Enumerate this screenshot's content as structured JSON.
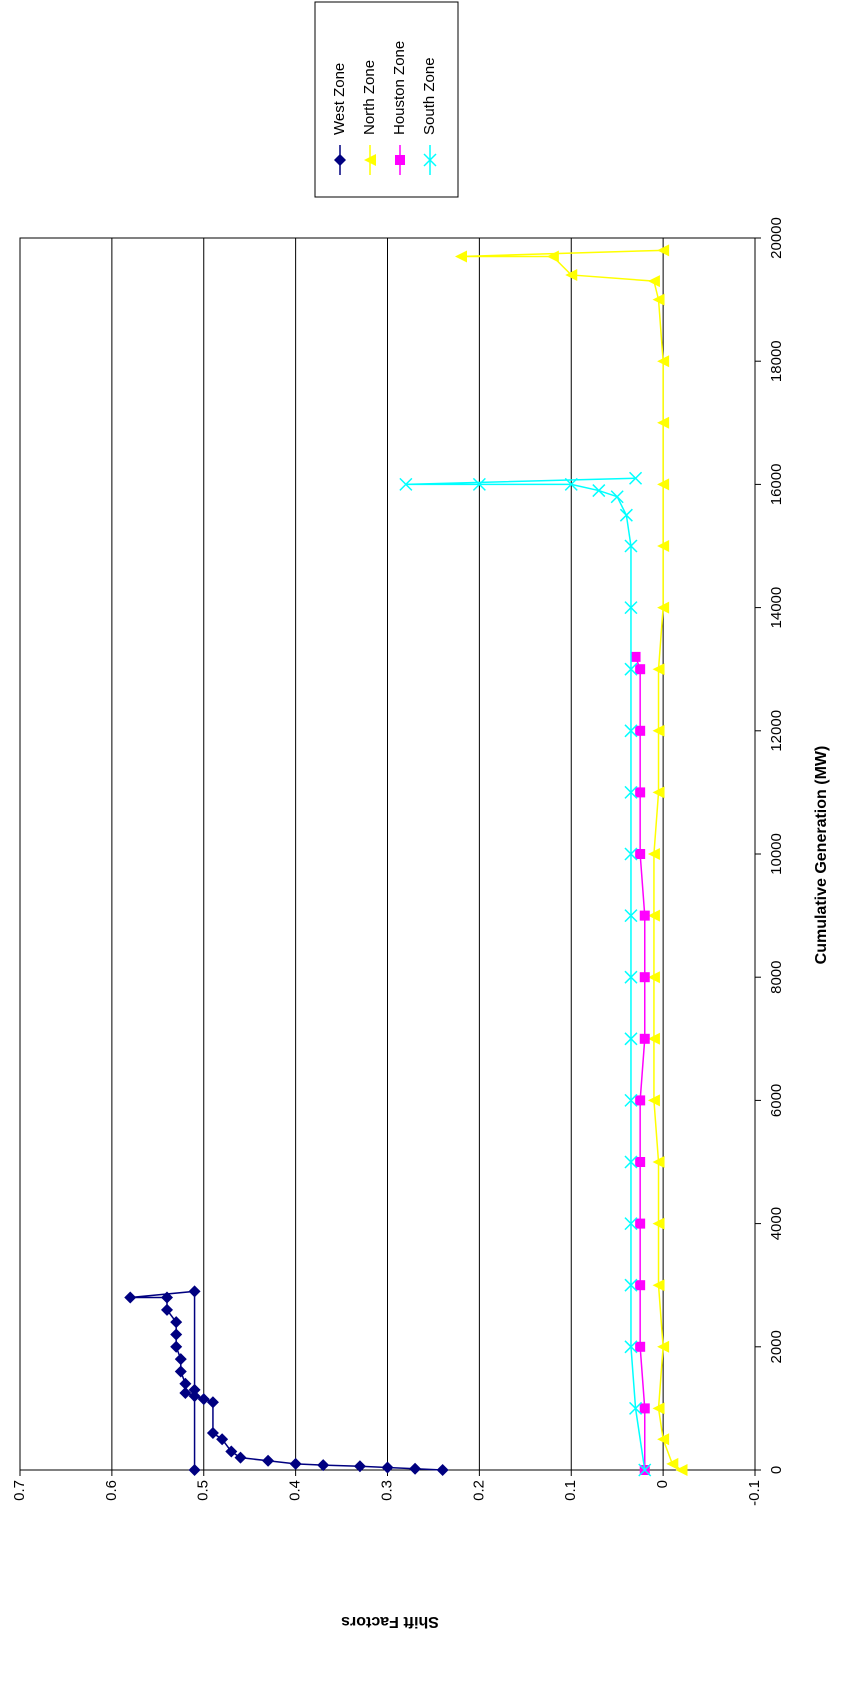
{
  "chart_data": {
    "type": "line",
    "x_label": "Cumulative Generation (MW)",
    "y_label": "Shift Factors",
    "xlim": [
      0,
      20000
    ],
    "xticks": [
      0,
      2000,
      4000,
      6000,
      8000,
      10000,
      12000,
      14000,
      16000,
      18000,
      20000
    ],
    "ylim": [
      -0.1,
      0.7
    ],
    "yticks": [
      -0.1,
      0,
      0.1,
      0.2,
      0.3,
      0.4,
      0.5,
      0.6,
      0.7
    ],
    "grid": true,
    "legend": "right",
    "series": [
      {
        "name": "West Zone",
        "color": "#000080",
        "marker": "diamond",
        "x": [
          0,
          20,
          40,
          60,
          80,
          100,
          150,
          200,
          300,
          500,
          600,
          1100,
          1150,
          1200,
          1250,
          1400,
          1600,
          1800,
          2000,
          2200,
          2400,
          2600,
          2800,
          2800,
          2900,
          1300,
          0
        ],
        "values": [
          0.24,
          0.27,
          0.3,
          0.33,
          0.37,
          0.4,
          0.43,
          0.46,
          0.47,
          0.48,
          0.49,
          0.49,
          0.5,
          0.51,
          0.52,
          0.52,
          0.525,
          0.525,
          0.53,
          0.53,
          0.53,
          0.54,
          0.54,
          0.58,
          0.51,
          0.51,
          0.51
        ]
      },
      {
        "name": "North Zone",
        "color": "#FFFF00",
        "marker": "triangle",
        "x": [
          0,
          100,
          500,
          1000,
          2000,
          3000,
          4000,
          5000,
          6000,
          7000,
          8000,
          9000,
          10000,
          11000,
          12000,
          13000,
          14000,
          15000,
          16000,
          17000,
          18000,
          19000,
          19300,
          19400,
          19700,
          19700,
          19800
        ],
        "values": [
          -0.02,
          -0.01,
          0,
          0.005,
          0,
          0.005,
          0.005,
          0.005,
          0.01,
          0.01,
          0.01,
          0.01,
          0.01,
          0.005,
          0.005,
          0.005,
          0,
          0,
          0,
          0,
          0,
          0.005,
          0.01,
          0.1,
          0.12,
          0.22,
          0
        ]
      },
      {
        "name": "Houston Zone",
        "color": "#FF00FF",
        "marker": "square",
        "x": [
          0,
          1000,
          2000,
          3000,
          4000,
          5000,
          6000,
          7000,
          8000,
          9000,
          10000,
          11000,
          12000,
          13000,
          13200
        ],
        "values": [
          0.02,
          0.02,
          0.025,
          0.025,
          0.025,
          0.025,
          0.025,
          0.02,
          0.02,
          0.02,
          0.025,
          0.025,
          0.025,
          0.025,
          0.03
        ]
      },
      {
        "name": "South Zone",
        "color": "#00FFFF",
        "marker": "x",
        "x": [
          0,
          1000,
          2000,
          3000,
          4000,
          5000,
          6000,
          7000,
          8000,
          9000,
          10000,
          11000,
          12000,
          13000,
          14000,
          15000,
          15500,
          15800,
          15900,
          16000,
          16000,
          16000,
          16100
        ],
        "values": [
          0.02,
          0.03,
          0.035,
          0.035,
          0.035,
          0.035,
          0.035,
          0.035,
          0.035,
          0.035,
          0.035,
          0.035,
          0.035,
          0.035,
          0.035,
          0.035,
          0.04,
          0.05,
          0.07,
          0.1,
          0.2,
          0.28,
          0.03
        ]
      }
    ]
  }
}
